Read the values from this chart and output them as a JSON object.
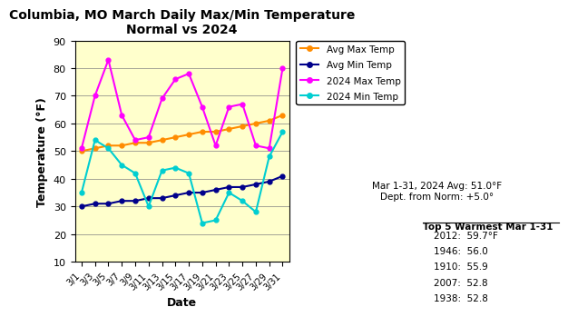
{
  "title": "Columbia, MO March Daily Max/Min Temperature\nNormal vs 2024",
  "xlabel": "Date",
  "ylabel": "Temperature (°F)",
  "background_color": "#FFFFCC",
  "ylim": [
    10,
    90
  ],
  "yticks": [
    10,
    20,
    30,
    40,
    50,
    60,
    70,
    80,
    90
  ],
  "dates": [
    "3/1",
    "3/3",
    "3/5",
    "3/7",
    "3/9",
    "3/11",
    "3/13",
    "3/15",
    "3/17",
    "3/19",
    "3/21",
    "3/23",
    "3/25",
    "3/27",
    "3/29",
    "3/31"
  ],
  "avg_max": [
    50,
    51,
    52,
    52,
    53,
    53,
    54,
    55,
    56,
    57,
    57,
    58,
    59,
    60,
    61,
    63
  ],
  "avg_min": [
    30,
    31,
    31,
    32,
    32,
    33,
    33,
    34,
    35,
    35,
    36,
    37,
    37,
    38,
    39,
    41
  ],
  "max_2024": [
    51,
    70,
    83,
    63,
    54,
    55,
    69,
    76,
    78,
    66,
    52,
    66,
    67,
    52,
    51,
    80
  ],
  "min_2024": [
    35,
    54,
    51,
    45,
    42,
    30,
    43,
    44,
    42,
    24,
    25,
    35,
    32,
    28,
    48,
    57
  ],
  "avg_max_color": "#FF8C00",
  "avg_min_color": "#00008B",
  "max_2024_color": "#FF00FF",
  "min_2024_color": "#00CED1",
  "annotation_text": "Mar 1-31, 2024 Avg: 51.0°F\nDept. from Norm: +5.0°",
  "top5_title": "Top 5 Warmest Mar 1-31",
  "top5": [
    [
      "2012:",
      "59.7°F"
    ],
    [
      "1946:",
      "56.0"
    ],
    [
      "1910:",
      "55.9"
    ],
    [
      "2007:",
      "52.8"
    ],
    [
      "1938:",
      "52.8"
    ]
  ]
}
